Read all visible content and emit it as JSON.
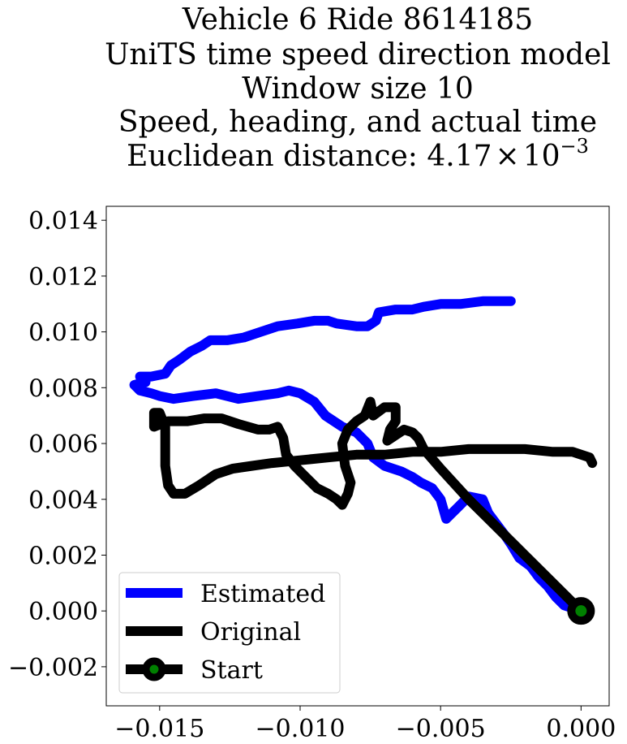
{
  "chart_data": {
    "type": "line",
    "title_lines": [
      "Vehicle 6 Ride 8614185",
      "UniTS time speed direction model",
      "Window size 10",
      "Speed, heading, and actual time",
      "Euclidean distance: 4.17×10⁻³"
    ],
    "title_distance_prefix": "Euclidean distance: 4.17",
    "title_distance_times": "×",
    "title_distance_base": "10",
    "title_distance_exp": "−3",
    "xlabel": "",
    "ylabel": "",
    "xlim": [
      -0.0169,
      0.001
    ],
    "ylim": [
      -0.0034,
      0.0145
    ],
    "x_ticks": [
      -0.015,
      -0.01,
      -0.005,
      0.0
    ],
    "x_tick_labels": [
      "−0.015",
      "−0.010",
      "−0.005",
      "0.000"
    ],
    "y_ticks": [
      -0.002,
      0.0,
      0.002,
      0.004,
      0.006,
      0.008,
      0.01,
      0.012,
      0.014
    ],
    "y_tick_labels": [
      "−0.002",
      "0.000",
      "0.002",
      "0.004",
      "0.006",
      "0.008",
      "0.010",
      "0.012",
      "0.014"
    ],
    "grid": false,
    "legend_position": "lower-left",
    "series": [
      {
        "name": "Estimated",
        "color": "#0000ff",
        "points": [
          [
            0.0,
            0.0
          ],
          [
            -0.0006,
            0.0002
          ],
          [
            -0.0009,
            0.0005
          ],
          [
            -0.0012,
            0.0009
          ],
          [
            -0.0015,
            0.0012
          ],
          [
            -0.0018,
            0.0016
          ],
          [
            -0.0022,
            0.0019
          ],
          [
            -0.0025,
            0.0024
          ],
          [
            -0.0027,
            0.0027
          ],
          [
            -0.003,
            0.0031
          ],
          [
            -0.0033,
            0.0035
          ],
          [
            -0.0035,
            0.004
          ],
          [
            -0.004,
            0.0041
          ],
          [
            -0.0044,
            0.0037
          ],
          [
            -0.0048,
            0.0033
          ],
          [
            -0.005,
            0.004
          ],
          [
            -0.0053,
            0.0044
          ],
          [
            -0.0057,
            0.0046
          ],
          [
            -0.006,
            0.0048
          ],
          [
            -0.0064,
            0.005
          ],
          [
            -0.007,
            0.0052
          ],
          [
            -0.0074,
            0.0055
          ],
          [
            -0.0076,
            0.006
          ],
          [
            -0.008,
            0.0064
          ],
          [
            -0.0085,
            0.0066
          ],
          [
            -0.0091,
            0.007
          ],
          [
            -0.0095,
            0.0075
          ],
          [
            -0.01,
            0.0078
          ],
          [
            -0.0104,
            0.0079
          ],
          [
            -0.0108,
            0.0078
          ],
          [
            -0.0115,
            0.0077
          ],
          [
            -0.0122,
            0.0076
          ],
          [
            -0.013,
            0.0078
          ],
          [
            -0.0138,
            0.0077
          ],
          [
            -0.0145,
            0.0076
          ],
          [
            -0.015,
            0.0077
          ],
          [
            -0.0153,
            0.0078
          ],
          [
            -0.0157,
            0.0079
          ],
          [
            -0.0159,
            0.0081
          ],
          [
            -0.0155,
            0.0082
          ],
          [
            -0.0157,
            0.0084
          ],
          [
            -0.0153,
            0.0084
          ],
          [
            -0.0148,
            0.0085
          ],
          [
            -0.0146,
            0.0088
          ],
          [
            -0.0143,
            0.009
          ],
          [
            -0.0139,
            0.0093
          ],
          [
            -0.0135,
            0.0095
          ],
          [
            -0.0132,
            0.0097
          ],
          [
            -0.0126,
            0.0097
          ],
          [
            -0.012,
            0.0098
          ],
          [
            -0.0114,
            0.01
          ],
          [
            -0.0108,
            0.0102
          ],
          [
            -0.0101,
            0.0103
          ],
          [
            -0.0095,
            0.0104
          ],
          [
            -0.009,
            0.0104
          ],
          [
            -0.0087,
            0.0103
          ],
          [
            -0.008,
            0.0102
          ],
          [
            -0.0076,
            0.0102
          ],
          [
            -0.0073,
            0.0104
          ],
          [
            -0.0072,
            0.0107
          ],
          [
            -0.0066,
            0.0108
          ],
          [
            -0.006,
            0.0108
          ],
          [
            -0.0056,
            0.0109
          ],
          [
            -0.005,
            0.011
          ],
          [
            -0.0043,
            0.011
          ],
          [
            -0.0035,
            0.0111
          ],
          [
            -0.0028,
            0.0111
          ],
          [
            -0.0025,
            0.0111
          ]
        ]
      },
      {
        "name": "Original",
        "color": "#000000",
        "points": [
          [
            0.0,
            0.0
          ],
          [
            -0.001,
            0.001
          ],
          [
            -0.002,
            0.002
          ],
          [
            -0.003,
            0.003
          ],
          [
            -0.004,
            0.004
          ],
          [
            -0.005,
            0.0051
          ],
          [
            -0.0056,
            0.0058
          ],
          [
            -0.0058,
            0.0062
          ],
          [
            -0.006,
            0.0064
          ],
          [
            -0.0063,
            0.0065
          ],
          [
            -0.0066,
            0.0063
          ],
          [
            -0.0069,
            0.0061
          ],
          [
            -0.0068,
            0.0065
          ],
          [
            -0.0066,
            0.0068
          ],
          [
            -0.0066,
            0.0073
          ],
          [
            -0.007,
            0.0073
          ],
          [
            -0.0074,
            0.007
          ],
          [
            -0.0075,
            0.0075
          ],
          [
            -0.0077,
            0.007
          ],
          [
            -0.008,
            0.0068
          ],
          [
            -0.0083,
            0.0065
          ],
          [
            -0.0085,
            0.006
          ],
          [
            -0.0084,
            0.0052
          ],
          [
            -0.0082,
            0.0046
          ],
          [
            -0.0083,
            0.0042
          ],
          [
            -0.0085,
            0.0038
          ],
          [
            -0.0087,
            0.004
          ],
          [
            -0.009,
            0.0042
          ],
          [
            -0.0094,
            0.0044
          ],
          [
            -0.0098,
            0.0048
          ],
          [
            -0.0102,
            0.0052
          ],
          [
            -0.0105,
            0.0056
          ],
          [
            -0.0106,
            0.0062
          ],
          [
            -0.0108,
            0.0066
          ],
          [
            -0.0111,
            0.0065
          ],
          [
            -0.0115,
            0.0065
          ],
          [
            -0.0122,
            0.0067
          ],
          [
            -0.0128,
            0.0069
          ],
          [
            -0.0134,
            0.0069
          ],
          [
            -0.014,
            0.0068
          ],
          [
            -0.0147,
            0.0068
          ],
          [
            -0.0152,
            0.0066
          ],
          [
            -0.0152,
            0.0071
          ],
          [
            -0.015,
            0.0071
          ],
          [
            -0.0148,
            0.0066
          ],
          [
            -0.0148,
            0.006
          ],
          [
            -0.0148,
            0.0052
          ],
          [
            -0.0147,
            0.0045
          ],
          [
            -0.0145,
            0.0042
          ],
          [
            -0.0141,
            0.0042
          ],
          [
            -0.0136,
            0.0045
          ],
          [
            -0.013,
            0.0049
          ],
          [
            -0.0124,
            0.0051
          ],
          [
            -0.0117,
            0.0052
          ],
          [
            -0.011,
            0.0053
          ],
          [
            -0.01,
            0.0054
          ],
          [
            -0.009,
            0.0055
          ],
          [
            -0.008,
            0.0056
          ],
          [
            -0.007,
            0.0056
          ],
          [
            -0.006,
            0.0057
          ],
          [
            -0.005,
            0.0057
          ],
          [
            -0.004,
            0.0058
          ],
          [
            -0.003,
            0.0058
          ],
          [
            -0.002,
            0.0058
          ],
          [
            -0.001,
            0.0057
          ],
          [
            -0.0003,
            0.0057
          ],
          [
            0.0003,
            0.0055
          ],
          [
            0.0004,
            0.0053
          ]
        ]
      }
    ],
    "start": {
      "name": "Start",
      "point": [
        0.0,
        0.0
      ],
      "marker_face": "#008000",
      "marker_edge": "#000000",
      "line_color": "#000000"
    }
  }
}
